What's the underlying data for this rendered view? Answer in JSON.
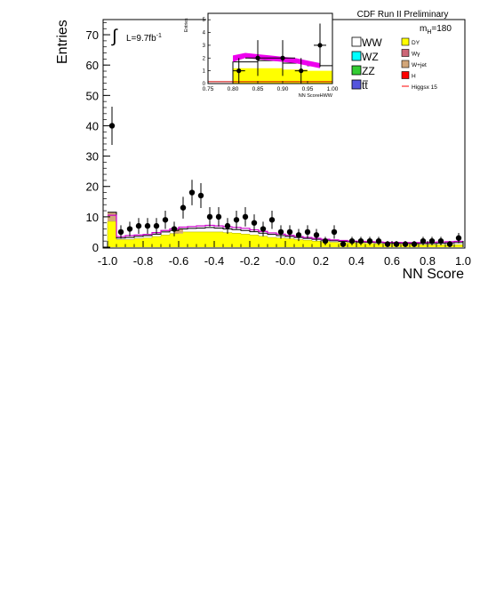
{
  "chart_data": [
    {
      "type": "histogram",
      "name": "main",
      "xlabel": "NN Score",
      "ylabel": "Entries",
      "xlim": [
        -1.0,
        1.0
      ],
      "ylim": [
        0,
        75
      ],
      "x_ticks": [
        "-1.0",
        "-0.8",
        "-0.6",
        "-0.4",
        "-0.2",
        "-0.0",
        "0.2",
        "0.4",
        "0.6",
        "0.8",
        "1.0"
      ],
      "y_ticks": [
        "0",
        "10",
        "20",
        "30",
        "40",
        "50",
        "60",
        "70"
      ],
      "lumi_label": "L=9.7fb",
      "lumi_sup": "-1",
      "integral_symbol": "∫",
      "experiment_label": "CDF Run II Preliminary",
      "mass_label_main": "m",
      "mass_label_sub": "H",
      "mass_label_value": "=180",
      "bin_edges": [
        -1.0,
        -0.95,
        -0.9,
        -0.85,
        -0.8,
        -0.75,
        -0.7,
        -0.65,
        -0.6,
        -0.55,
        -0.5,
        -0.45,
        -0.4,
        -0.35,
        -0.3,
        -0.25,
        -0.2,
        -0.15,
        -0.1,
        -0.05,
        0.0,
        0.05,
        0.1,
        0.15,
        0.2,
        0.25,
        0.3,
        0.35,
        0.4,
        0.45,
        0.5,
        0.55,
        0.6,
        0.65,
        0.7,
        0.75,
        0.8,
        0.85,
        0.9,
        0.95,
        1.0
      ],
      "dy_values": [
        8.5,
        2.5,
        2.5,
        2.8,
        3.0,
        3.5,
        4.0,
        4.5,
        5.0,
        5.0,
        5.0,
        5.0,
        5.0,
        4.8,
        4.6,
        4.3,
        4.0,
        3.6,
        3.2,
        3.0,
        2.8,
        2.5,
        2.3,
        2.0,
        1.8,
        1.6,
        1.5,
        1.4,
        1.3,
        1.2,
        1.1,
        1.0,
        1.0,
        0.9,
        0.9,
        0.8,
        0.8,
        0.8,
        0.8,
        0.8
      ],
      "ww_total_values": [
        11.5,
        3.0,
        3.2,
        3.5,
        3.8,
        4.3,
        5.0,
        5.5,
        6.0,
        6.2,
        6.3,
        6.5,
        6.3,
        6.0,
        5.8,
        5.5,
        5.1,
        4.6,
        4.2,
        3.8,
        3.5,
        3.2,
        2.9,
        2.6,
        2.3,
        2.1,
        1.9,
        1.8,
        1.7,
        1.6,
        1.5,
        1.4,
        1.3,
        1.3,
        1.2,
        1.2,
        1.2,
        1.3,
        1.4,
        1.5
      ],
      "higgs_values": [
        10.5,
        3.5,
        3.8,
        4.0,
        4.2,
        4.8,
        5.5,
        6.0,
        6.6,
        6.8,
        7.0,
        7.2,
        7.0,
        6.7,
        6.5,
        6.2,
        5.7,
        5.2,
        4.7,
        4.3,
        3.9,
        3.5,
        3.2,
        2.9,
        2.6,
        2.4,
        2.2,
        2.0,
        1.9,
        1.8,
        1.7,
        1.6,
        1.6,
        1.5,
        1.5,
        1.5,
        1.6,
        1.7,
        1.8,
        1.9
      ],
      "data_points": [
        {
          "x": -0.975,
          "y": 40,
          "err": 6.3
        },
        {
          "x": -0.925,
          "y": 5,
          "err": 2.2
        },
        {
          "x": -0.875,
          "y": 6,
          "err": 2.4
        },
        {
          "x": -0.825,
          "y": 7,
          "err": 2.6
        },
        {
          "x": -0.775,
          "y": 7,
          "err": 2.6
        },
        {
          "x": -0.725,
          "y": 7,
          "err": 2.6
        },
        {
          "x": -0.675,
          "y": 9,
          "err": 3.0
        },
        {
          "x": -0.625,
          "y": 6,
          "err": 2.4
        },
        {
          "x": -0.575,
          "y": 13,
          "err": 3.6
        },
        {
          "x": -0.525,
          "y": 18,
          "err": 4.2
        },
        {
          "x": -0.475,
          "y": 17,
          "err": 4.1
        },
        {
          "x": -0.425,
          "y": 10,
          "err": 3.2
        },
        {
          "x": -0.375,
          "y": 10,
          "err": 3.2
        },
        {
          "x": -0.325,
          "y": 7,
          "err": 2.6
        },
        {
          "x": -0.275,
          "y": 9,
          "err": 3.0
        },
        {
          "x": -0.225,
          "y": 10,
          "err": 3.2
        },
        {
          "x": -0.175,
          "y": 8,
          "err": 2.8
        },
        {
          "x": -0.125,
          "y": 6,
          "err": 2.4
        },
        {
          "x": -0.075,
          "y": 9,
          "err": 3.0
        },
        {
          "x": -0.025,
          "y": 5,
          "err": 2.2
        },
        {
          "x": 0.025,
          "y": 5,
          "err": 2.2
        },
        {
          "x": 0.075,
          "y": 4,
          "err": 2.0
        },
        {
          "x": 0.125,
          "y": 5,
          "err": 2.2
        },
        {
          "x": 0.175,
          "y": 4,
          "err": 2.0
        },
        {
          "x": 0.225,
          "y": 2,
          "err": 1.4
        },
        {
          "x": 0.275,
          "y": 5,
          "err": 2.2
        },
        {
          "x": 0.325,
          "y": 1,
          "err": 1.0
        },
        {
          "x": 0.375,
          "y": 2,
          "err": 1.4
        },
        {
          "x": 0.425,
          "y": 2,
          "err": 1.4
        },
        {
          "x": 0.475,
          "y": 2,
          "err": 1.4
        },
        {
          "x": 0.525,
          "y": 2,
          "err": 1.4
        },
        {
          "x": 0.575,
          "y": 1,
          "err": 1.0
        },
        {
          "x": 0.625,
          "y": 1,
          "err": 1.0
        },
        {
          "x": 0.675,
          "y": 1,
          "err": 1.0
        },
        {
          "x": 0.725,
          "y": 1,
          "err": 1.0
        },
        {
          "x": 0.775,
          "y": 2,
          "err": 1.4
        },
        {
          "x": 0.825,
          "y": 2,
          "err": 1.4
        },
        {
          "x": 0.875,
          "y": 2,
          "err": 1.4
        },
        {
          "x": 0.925,
          "y": 1,
          "err": 1.0
        },
        {
          "x": 0.975,
          "y": 3,
          "err": 1.7
        }
      ]
    },
    {
      "type": "histogram",
      "name": "inset",
      "xlabel": "NN ScoreHWW",
      "ylabel": "Entries",
      "xlim": [
        0.75,
        1.0
      ],
      "ylim": [
        0,
        5.5
      ],
      "x_ticks": [
        "0.75",
        "0.80",
        "0.85",
        "0.90",
        "0.95",
        "1.00"
      ],
      "y_ticks": [
        "0",
        "1",
        "2",
        "3",
        "4",
        "5"
      ],
      "bin_edges": [
        0.75,
        0.8,
        0.85,
        0.9,
        0.95,
        1.0
      ],
      "dy_values": [
        0,
        1.2,
        1.2,
        1.1,
        1.0
      ],
      "ww_total_values": [
        0,
        1.7,
        1.8,
        1.6,
        1.4
      ],
      "higgs_band": {
        "x": [
          0.8,
          0.825,
          0.85,
          0.875,
          0.9,
          0.925,
          0.95,
          0.975
        ],
        "lo": [
          1.7,
          2.0,
          1.9,
          1.8,
          1.7,
          1.6,
          1.4,
          1.2
        ],
        "hi": [
          2.2,
          2.4,
          2.3,
          2.2,
          2.1,
          2.0,
          1.8,
          1.6
        ]
      },
      "data_points": [
        {
          "x": 0.812,
          "y": 1,
          "err": 1.0,
          "xerr": 0.0125
        },
        {
          "x": 0.85,
          "y": 2,
          "err": 1.4,
          "xerr": 0.025
        },
        {
          "x": 0.9,
          "y": 2,
          "err": 1.4,
          "xerr": 0.025
        },
        {
          "x": 0.937,
          "y": 1,
          "err": 1.0,
          "xerr": 0.0125
        },
        {
          "x": 0.975,
          "y": 3,
          "err": 1.7,
          "xerr": 0.0125
        }
      ]
    }
  ],
  "legend": {
    "left": [
      {
        "label": "WW",
        "color": "#ffffff",
        "key": "ww"
      },
      {
        "label": "WZ",
        "color": "#00ffff",
        "key": "wz"
      },
      {
        "label": "ZZ",
        "color": "#33cc33",
        "key": "zz"
      },
      {
        "label": "tt",
        "color": "#5555dd",
        "key": "tt"
      }
    ],
    "right": [
      {
        "label": "DY",
        "color": "#ffff00",
        "key": "dy",
        "kind": "box"
      },
      {
        "label": "Wγ",
        "color": "#cc6677",
        "key": "wgamma",
        "kind": "box"
      },
      {
        "label": "W+jet",
        "color": "#d2a679",
        "key": "wjet",
        "kind": "box"
      },
      {
        "label": "H",
        "color": "#ff0000",
        "key": "h",
        "kind": "box"
      },
      {
        "label": "Higgsx 15",
        "color": "#ff0000",
        "key": "higgsx15",
        "kind": "line"
      }
    ]
  },
  "colors": {
    "dy": "#ffff00",
    "ww": "#ffffff",
    "wjet": "#d2a679",
    "wgamma": "#cc6677",
    "higgs_line": "#cc00cc",
    "band": "#ee00ee",
    "data": "#000000"
  }
}
